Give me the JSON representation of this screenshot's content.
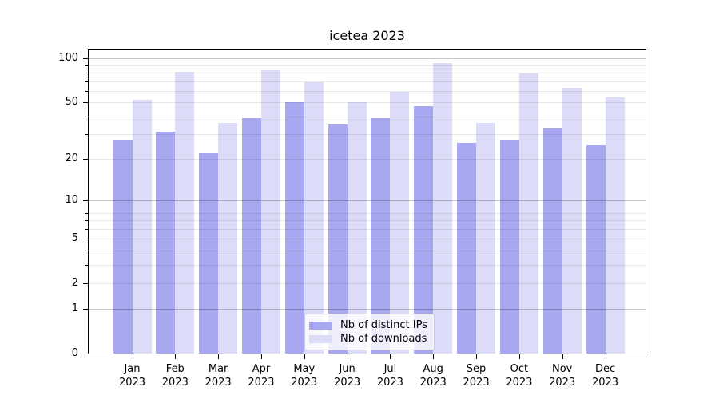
{
  "figure": {
    "title": "icetea 2023"
  },
  "chart_data": {
    "type": "bar",
    "title": "icetea 2023",
    "categories": [
      "Jan 2023",
      "Feb 2023",
      "Mar 2023",
      "Apr 2023",
      "May 2023",
      "Jun 2023",
      "Jul 2023",
      "Aug 2023",
      "Sep 2023",
      "Oct 2023",
      "Nov 2023",
      "Dec 2023"
    ],
    "x_tick_month_labels": [
      "Jan",
      "Feb",
      "Mar",
      "Apr",
      "May",
      "Jun",
      "Jul",
      "Aug",
      "Sep",
      "Oct",
      "Nov",
      "Dec"
    ],
    "x_tick_year_label": "2023",
    "series": [
      {
        "name": "Nb of distinct IPs",
        "color": "#a8a8f0",
        "values": [
          27,
          31,
          22,
          39,
          50,
          35,
          39,
          47,
          26,
          27,
          33,
          25
        ]
      },
      {
        "name": "Nb of downloads",
        "color": "#dcdcf8",
        "values": [
          52,
          81,
          36,
          83,
          69,
          50,
          59,
          93,
          36,
          79,
          63,
          54
        ]
      }
    ],
    "yscale": "log1p",
    "ylim": [
      0,
      115
    ],
    "xlabel": "",
    "ylabel": "",
    "y_tick_labels": [
      "0",
      "1",
      "2",
      "5",
      "10",
      "20",
      "50",
      "100"
    ],
    "y_tick_values": [
      0,
      1,
      2,
      5,
      10,
      20,
      50,
      100
    ],
    "grid_major_values": [
      1,
      10,
      100
    ],
    "grid_minor_values": [
      2,
      3,
      4,
      5,
      6,
      7,
      8,
      20,
      30,
      40,
      50,
      60,
      70,
      80,
      90
    ],
    "grid": "on",
    "legend_position": "lower center"
  },
  "legend": {
    "entries": [
      {
        "label": "Nb of distinct IPs",
        "swatch_color": "#a8a8f0"
      },
      {
        "label": "Nb of downloads",
        "swatch_color": "#dcdcf8"
      }
    ]
  },
  "colors": {
    "background": "#ffffff",
    "bar_distinct_ips": "#a8a8f0",
    "bar_downloads": "#dcdcf8",
    "grid_major": "rgba(0,0,0,0.22)",
    "grid_minor": "rgba(0,0,0,0.09)",
    "axis": "#000000",
    "text": "#000000",
    "legend_border": "#cccccc"
  }
}
